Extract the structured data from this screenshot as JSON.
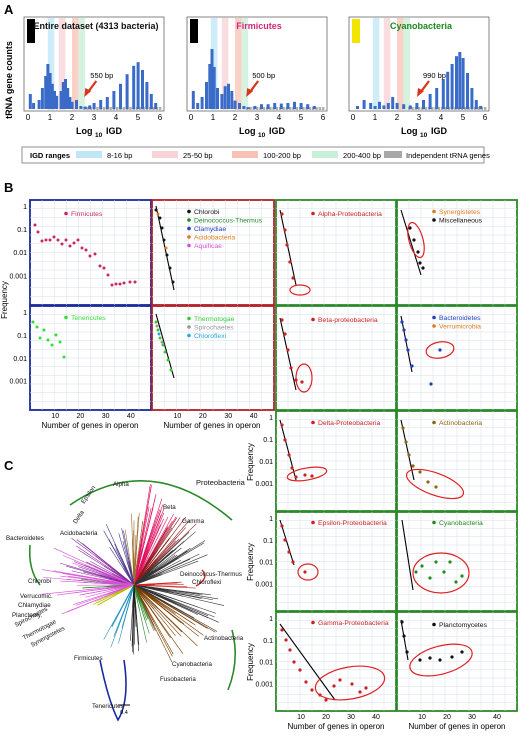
{
  "panel_labels": {
    "a": "A",
    "b": "B",
    "c": "C"
  },
  "panel_a": {
    "y_label": "tRNA gene counts",
    "x_label_main": "Log",
    "x_label_sub": "10",
    "x_label_end": "IGD",
    "x_ticks": [
      "0",
      "1",
      "2",
      "3",
      "4",
      "5",
      "6"
    ],
    "subpanels": [
      {
        "title": "Entire dataset (4313 bacteria)",
        "title_color": "#111111",
        "bar_color": "#000000",
        "annotation": "550 bp",
        "arrow_log": 2.65
      },
      {
        "title": "Firmicutes",
        "title_color": "#d4267a",
        "bar_color": "#000000",
        "annotation": "500 bp",
        "arrow_log": 2.6
      },
      {
        "title": "Cyanobacteria",
        "title_color": "#1e8a1e",
        "bar_color": "#f2e600",
        "annotation": "990 bp",
        "arrow_log": 3.0
      }
    ],
    "legend": {
      "title": "IGD ranges",
      "items": [
        {
          "label": "8-16 bp",
          "color": "#bfe6f7"
        },
        {
          "label": "25-50 bp",
          "color": "#f7d2d6"
        },
        {
          "label": "100-200 bp",
          "color": "#f7c1b4"
        },
        {
          "label": "200-400 bp",
          "color": "#c8efd8"
        },
        {
          "label": "Independent tRNA genes",
          "color": "#a8a8a8"
        }
      ]
    }
  },
  "panel_b": {
    "y_label": "Frequency",
    "x_label": "Number of genes in operon",
    "y_ticks": [
      "1",
      "0.1",
      "0.01",
      "0.001"
    ],
    "x_ticks": [
      "10",
      "20",
      "30",
      "40"
    ],
    "legends": {
      "firmicutes": [
        {
          "label": "Firmicutes",
          "color": "#c8285a"
        }
      ],
      "tenericutes": [
        {
          "label": "Tenericutes",
          "color": "#33dd33"
        }
      ],
      "group1": [
        {
          "label": "Chlorobi",
          "color": "#111111"
        },
        {
          "label": "Deinococcus-Thermus",
          "color": "#228b22"
        },
        {
          "label": "Clamydiae",
          "color": "#1f3fbf"
        },
        {
          "label": "Acidobacteria",
          "color": "#e07b1a"
        },
        {
          "label": "Aquificae",
          "color": "#d94fd9"
        }
      ],
      "group2": [
        {
          "label": "Thermotogae",
          "color": "#33cc33"
        },
        {
          "label": "Spirochaetes",
          "color": "#999999"
        },
        {
          "label": "Chloroflexi",
          "color": "#22aadd"
        }
      ],
      "alpha": [
        {
          "label": "Alpha-Proteobacteria",
          "color": "#cc2222"
        }
      ],
      "synergistetes": [
        {
          "label": "Synergistetes",
          "color": "#e07b1a"
        },
        {
          "label": "Miscellaneous",
          "color": "#111111"
        }
      ],
      "beta": [
        {
          "label": "Beta-proteobacteria",
          "color": "#cc2222"
        }
      ],
      "bacteroidetes": [
        {
          "label": "Bacteroidetes",
          "color": "#1f3fbf"
        },
        {
          "label": "Verrumicrobia",
          "color": "#e07b1a"
        }
      ],
      "delta": [
        {
          "label": "Delta-Proteobacteria",
          "color": "#cc2222"
        }
      ],
      "actinobacteria": [
        {
          "label": "Actinobacteria",
          "color": "#8b6914"
        }
      ],
      "epsilon": [
        {
          "label": "Epsilon-Proteobacteria",
          "color": "#cc2222"
        }
      ],
      "cyanobacteria": [
        {
          "label": "Cyanobacteria",
          "color": "#228b22"
        }
      ],
      "gamma": [
        {
          "label": "Gamma-Proteobacteria",
          "color": "#cc2222"
        }
      ],
      "planctomycetes": [
        {
          "label": "Planctomycetes",
          "color": "#111111"
        }
      ]
    }
  },
  "panel_c": {
    "clades": [
      {
        "label": "Proteobacteria",
        "color": "#111111"
      },
      {
        "label": "Alpha",
        "color": "#111111"
      },
      {
        "label": "Beta",
        "color": "#111111"
      },
      {
        "label": "Gamma",
        "color": "#111111"
      },
      {
        "label": "Epsilon",
        "color": "#111111"
      },
      {
        "label": "Delta",
        "color": "#111111"
      },
      {
        "label": "Acidobacteria",
        "color": "#111111"
      },
      {
        "label": "Bacteroidetes",
        "color": "#111111"
      },
      {
        "label": "Chlorobi",
        "color": "#111111"
      },
      {
        "label": "Verrucomic.",
        "color": "#111111"
      },
      {
        "label": "Chlamydiae",
        "color": "#111111"
      },
      {
        "label": "Planctomy.",
        "color": "#111111"
      },
      {
        "label": "Spirochaetes",
        "color": "#111111"
      },
      {
        "label": "Thermotogae",
        "color": "#111111"
      },
      {
        "label": "Synergistetes",
        "color": "#111111"
      },
      {
        "label": "Deinococcus-Thermus",
        "color": "#111111"
      },
      {
        "label": "Chloroflexi",
        "color": "#111111"
      },
      {
        "label": "Actinobacteria",
        "color": "#111111"
      },
      {
        "label": "Cyanobacteria",
        "color": "#111111"
      },
      {
        "label": "Fusobacteria",
        "color": "#111111"
      },
      {
        "label": "Firmicutes",
        "color": "#111111"
      },
      {
        "label": "Tenericutes",
        "color": "#111111"
      }
    ],
    "scale_label": "0.4"
  }
}
